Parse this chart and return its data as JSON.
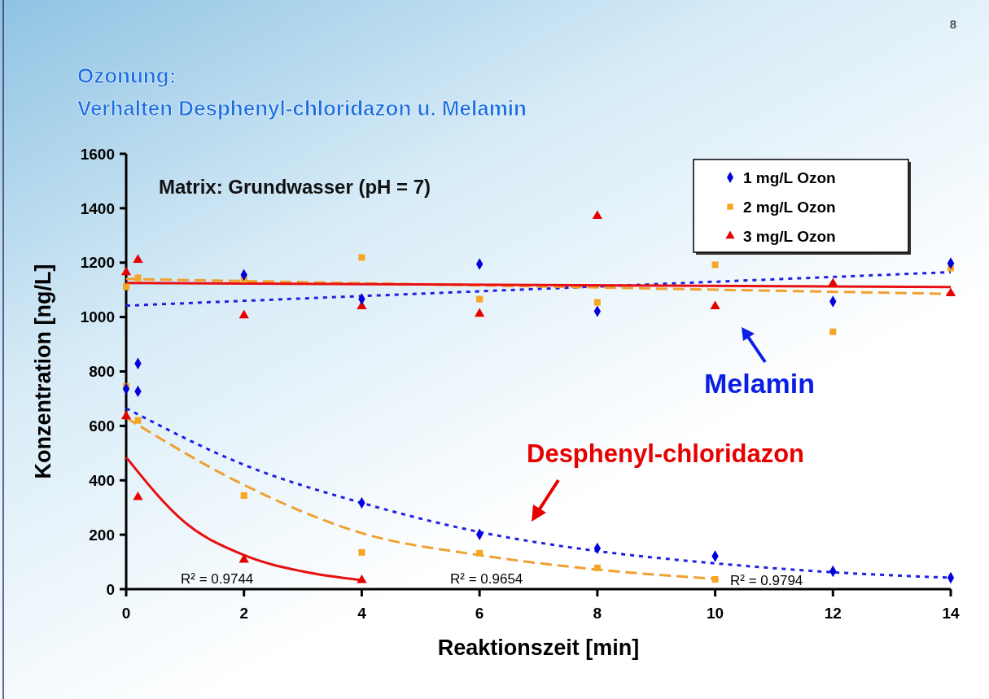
{
  "chart_data": {
    "type": "scatter",
    "title": "Ozonung:",
    "subtitle": "Verhalten Desphenyl-chloridazon u. Melamin",
    "xlabel": "Reaktionszeit [min]",
    "ylabel": "Konzentration [ng/L]",
    "xlim": [
      0,
      14
    ],
    "xticks": [
      0,
      2,
      4,
      6,
      8,
      10,
      12,
      14
    ],
    "ylim": [
      0,
      1600
    ],
    "yticks": [
      0,
      200,
      400,
      600,
      800,
      1000,
      1200,
      1400,
      1600
    ],
    "grid": false,
    "legend": "top right",
    "annotations": [
      "8",
      "Matrix: Grundwasser (pH = 7)",
      "Melamin",
      "Desphenyl-chloridazon",
      "R² = 0.9744",
      "R² = 0.9654",
      "R² = 0.9794"
    ],
    "series": [
      {
        "name": "1 mg/L Ozon",
        "marker": "diamond",
        "color": "#0000dd",
        "x": [
          0,
          0.2,
          0.2,
          2,
          4,
          4,
          6,
          6,
          8,
          8,
          10,
          12,
          12,
          14,
          14
        ],
        "values": [
          736,
          829,
          727,
          1155,
          1066,
          317,
          1195,
          201,
          1021,
          150,
          121,
          1057,
          66,
          1198,
          42
        ]
      },
      {
        "name": "2 mg/L Ozon",
        "marker": "square",
        "color": "#f5a623",
        "x": [
          0,
          0,
          0.2,
          0.2,
          2,
          2,
          4,
          4,
          6,
          6,
          8,
          8,
          10,
          10,
          12,
          14
        ],
        "values": [
          1111,
          745,
          1144,
          620,
          1138,
          344,
          1219,
          135,
          1066,
          132,
          1054,
          78,
          1192,
          36,
          946,
          1180
        ]
      },
      {
        "name": "3 mg/L Ozon",
        "marker": "triangle",
        "color": "#e60000",
        "x": [
          0,
          0,
          0.2,
          0.2,
          2,
          2,
          4,
          4,
          6,
          8,
          10,
          12,
          14
        ],
        "values": [
          1164,
          635,
          1210,
          338,
          1006,
          108,
          1039,
          33,
          1012,
          1371,
          1039,
          1123,
          1087
        ]
      },
      {
        "type": "line",
        "line_style": "dotted",
        "color": "#2020e0",
        "x": [
          0,
          14
        ],
        "values": [
          1042,
          1165
        ]
      },
      {
        "type": "line",
        "line_style": "dashed",
        "color": "#f0a030",
        "x": [
          0,
          14
        ],
        "values": [
          1140,
          1085
        ]
      },
      {
        "type": "line",
        "line_style": "solid",
        "color": "#e81010",
        "x": [
          0,
          14
        ],
        "values": [
          1125,
          1110
        ]
      },
      {
        "type": "line",
        "line_style": "dotted",
        "color": "#2020e0",
        "x": [
          0,
          2,
          4,
          6,
          8,
          10,
          12,
          14
        ],
        "values": [
          665,
          457,
          317,
          210,
          140,
          95,
          62,
          42
        ]
      },
      {
        "type": "line",
        "line_style": "dashed",
        "color": "#f0a030",
        "x": [
          0,
          2,
          4,
          6,
          8,
          10
        ],
        "values": [
          630,
          383,
          206,
          125,
          72,
          38
        ]
      },
      {
        "type": "line",
        "line_style": "solid",
        "color": "#e81010",
        "x": [
          0,
          1,
          2,
          3,
          4
        ],
        "values": [
          485,
          245,
          125,
          65,
          33
        ]
      }
    ]
  }
}
